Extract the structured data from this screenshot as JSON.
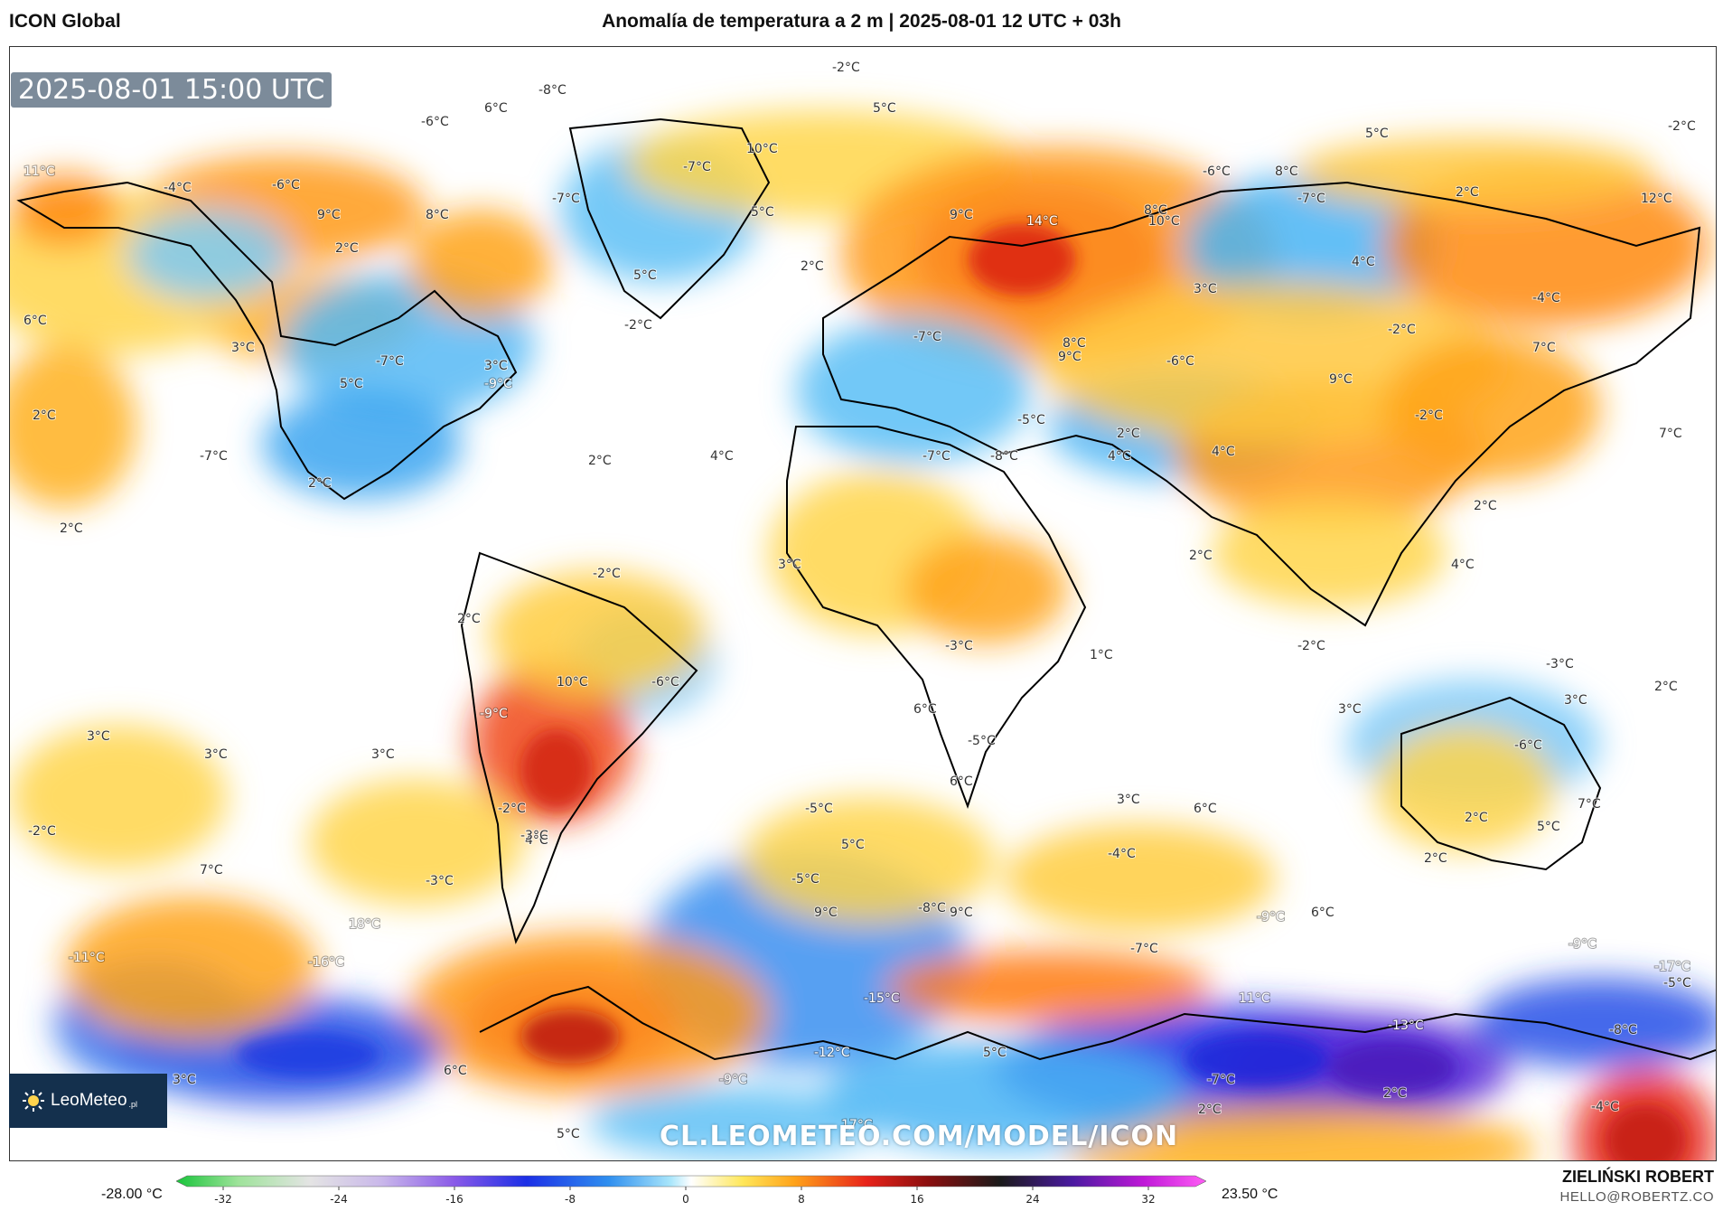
{
  "header": {
    "model": "ICON Global",
    "title": "Anomalía de temperatura a 2 m | 2025-08-01 12 UTC + 03h"
  },
  "map": {
    "timestamp": "2025-08-01 15:00 UTC",
    "watermark": "CL.LEOMETEO.COM/MODEL/ICON",
    "logo_text": "LeoMeteo",
    "logo_suffix": ".pl",
    "labels": [
      {
        "t": "-2°C"
      },
      {
        "t": "-8°C"
      },
      {
        "t": "6°C"
      },
      {
        "t": "-6°C"
      },
      {
        "t": "5°C"
      },
      {
        "t": "-2°C"
      },
      {
        "t": "-7°C"
      },
      {
        "t": "10°C"
      },
      {
        "t": "11°C"
      },
      {
        "t": "-4°C"
      },
      {
        "t": "-6°C"
      },
      {
        "t": "-7°C"
      },
      {
        "t": "9°C"
      },
      {
        "t": "8°C"
      },
      {
        "t": "9°C"
      },
      {
        "t": "-6°C"
      },
      {
        "t": "2°C"
      },
      {
        "t": "10°C"
      },
      {
        "t": "14°C"
      },
      {
        "t": "5°C"
      },
      {
        "t": "8°C"
      },
      {
        "t": "-7°C"
      },
      {
        "t": "8°C"
      },
      {
        "t": "12°C"
      },
      {
        "t": "4°C"
      },
      {
        "t": "3°C"
      },
      {
        "t": "-4°C"
      },
      {
        "t": "6°C"
      },
      {
        "t": "-2°C"
      },
      {
        "t": "5°C"
      },
      {
        "t": "-7°C"
      },
      {
        "t": "-9°C"
      },
      {
        "t": "-2°C"
      },
      {
        "t": "-6°C"
      },
      {
        "t": "9°C"
      },
      {
        "t": "7°C"
      },
      {
        "t": "3°C"
      },
      {
        "t": "-7°C"
      },
      {
        "t": "3°C"
      },
      {
        "t": "5°C"
      },
      {
        "t": "5°C"
      },
      {
        "t": "-5°C"
      },
      {
        "t": "8°C"
      },
      {
        "t": "9°C"
      },
      {
        "t": "4°C"
      },
      {
        "t": "-2°C"
      },
      {
        "t": "2°C"
      },
      {
        "t": "-7°C"
      },
      {
        "t": "7°C"
      },
      {
        "t": "2°C"
      },
      {
        "t": "2°C"
      },
      {
        "t": "2°C"
      },
      {
        "t": "-7°C"
      },
      {
        "t": "-8°C"
      },
      {
        "t": "4°C"
      },
      {
        "t": "4°C"
      },
      {
        "t": "2°C"
      },
      {
        "t": "2°C"
      },
      {
        "t": "2°C"
      },
      {
        "t": "-2°C"
      },
      {
        "t": "2°C"
      },
      {
        "t": "-3°C"
      },
      {
        "t": "1°C"
      },
      {
        "t": "2°C"
      },
      {
        "t": "3°C"
      },
      {
        "t": "4°C"
      },
      {
        "t": "2°C"
      },
      {
        "t": "-3°C"
      },
      {
        "t": "10°C"
      },
      {
        "t": "-6°C"
      },
      {
        "t": "6°C"
      },
      {
        "t": "-2°C"
      },
      {
        "t": "3°C"
      },
      {
        "t": "-5°C"
      },
      {
        "t": "2°C"
      },
      {
        "t": "3°C"
      },
      {
        "t": "-9°C"
      },
      {
        "t": "3°C"
      },
      {
        "t": "6°C"
      },
      {
        "t": "-5°C"
      },
      {
        "t": "3°C"
      },
      {
        "t": "-2°C"
      },
      {
        "t": "4°C"
      },
      {
        "t": "-4°C"
      },
      {
        "t": "-6°C"
      },
      {
        "t": "7°C"
      },
      {
        "t": "2°C"
      },
      {
        "t": "5°C"
      },
      {
        "t": "6°C"
      },
      {
        "t": "-5°C"
      },
      {
        "t": "-2°C"
      },
      {
        "t": "3°C"
      },
      {
        "t": "7°C"
      },
      {
        "t": "3°C"
      },
      {
        "t": "-3°C"
      },
      {
        "t": "-8°C"
      },
      {
        "t": "-3°C"
      },
      {
        "t": "9°C"
      },
      {
        "t": "9°C"
      },
      {
        "t": "6°C"
      },
      {
        "t": "5°C"
      },
      {
        "t": "2°C"
      },
      {
        "t": "-9°C"
      },
      {
        "t": "18°C"
      },
      {
        "t": "-9°C"
      },
      {
        "t": "-8°C"
      },
      {
        "t": "-11°C"
      },
      {
        "t": "-16°C"
      },
      {
        "t": "-7°C"
      },
      {
        "t": "-17°C"
      },
      {
        "t": "11°C"
      },
      {
        "t": "-13°C"
      },
      {
        "t": "-5°C"
      },
      {
        "t": "-15°C"
      },
      {
        "t": "-12°C"
      },
      {
        "t": "5°C"
      },
      {
        "t": "3°C"
      },
      {
        "t": "6°C"
      },
      {
        "t": "-7°C"
      },
      {
        "t": "2°C"
      },
      {
        "t": "-9°C"
      },
      {
        "t": "2°C"
      },
      {
        "t": "-4°C"
      },
      {
        "t": "5°C"
      },
      {
        "t": "17°C"
      }
    ]
  },
  "colorbar": {
    "min_label": "-28.00 °C",
    "max_label": "23.50 °C",
    "ticks": [
      "-32",
      "-24",
      "-16",
      "-8",
      "0",
      "8",
      "16",
      "24",
      "32"
    ]
  },
  "footer": {
    "author": "ZIELIŃSKI ROBERT",
    "email": "HELLO@ROBERTZ.CO"
  }
}
